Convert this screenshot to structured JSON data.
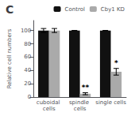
{
  "chart_data": {
    "type": "bar",
    "title": "C",
    "ylabel": "Relative cell numbers",
    "categories": [
      "cuboidal cells",
      "spindle cells",
      "single cells"
    ],
    "series": [
      {
        "name": "Control",
        "color": "#111111",
        "values": [
          100,
          100,
          100
        ],
        "errors": [
          3,
          0,
          0
        ]
      },
      {
        "name": "Cby1 KD",
        "color": "#aaaaaa",
        "values": [
          100,
          5,
          38
        ],
        "errors": [
          3,
          1.5,
          5
        ]
      }
    ],
    "annotations": [
      {
        "text": "**",
        "category": "spindle cells",
        "series": "Cby1 KD",
        "y": 8
      },
      {
        "text": "*",
        "category": "single cells",
        "series": "Cby1 KD",
        "y": 45
      }
    ],
    "ylim": [
      0,
      115
    ],
    "yticks": [
      0,
      20,
      40,
      60,
      80,
      100
    ],
    "grid": false,
    "legend": "upper right"
  }
}
